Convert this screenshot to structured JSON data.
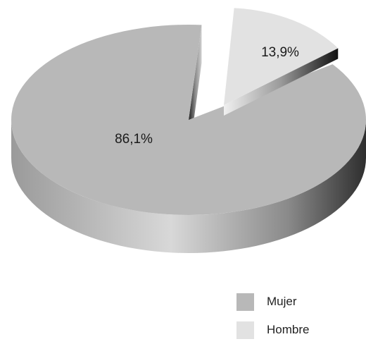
{
  "chart_data": {
    "type": "pie",
    "style": "3d-exploded",
    "title": "",
    "slices": [
      {
        "label": "Mujer",
        "value": 86.1,
        "display": "86,1%",
        "color": "#b8b8b8"
      },
      {
        "label": "Hombre",
        "value": 13.9,
        "display": "13,9%",
        "color": "#e2e2e2"
      }
    ],
    "legend_position": "bottom-right"
  },
  "legend": [
    {
      "label": "Mujer",
      "color": "#b8b8b8"
    },
    {
      "label": "Hombre",
      "color": "#e2e2e2"
    }
  ]
}
